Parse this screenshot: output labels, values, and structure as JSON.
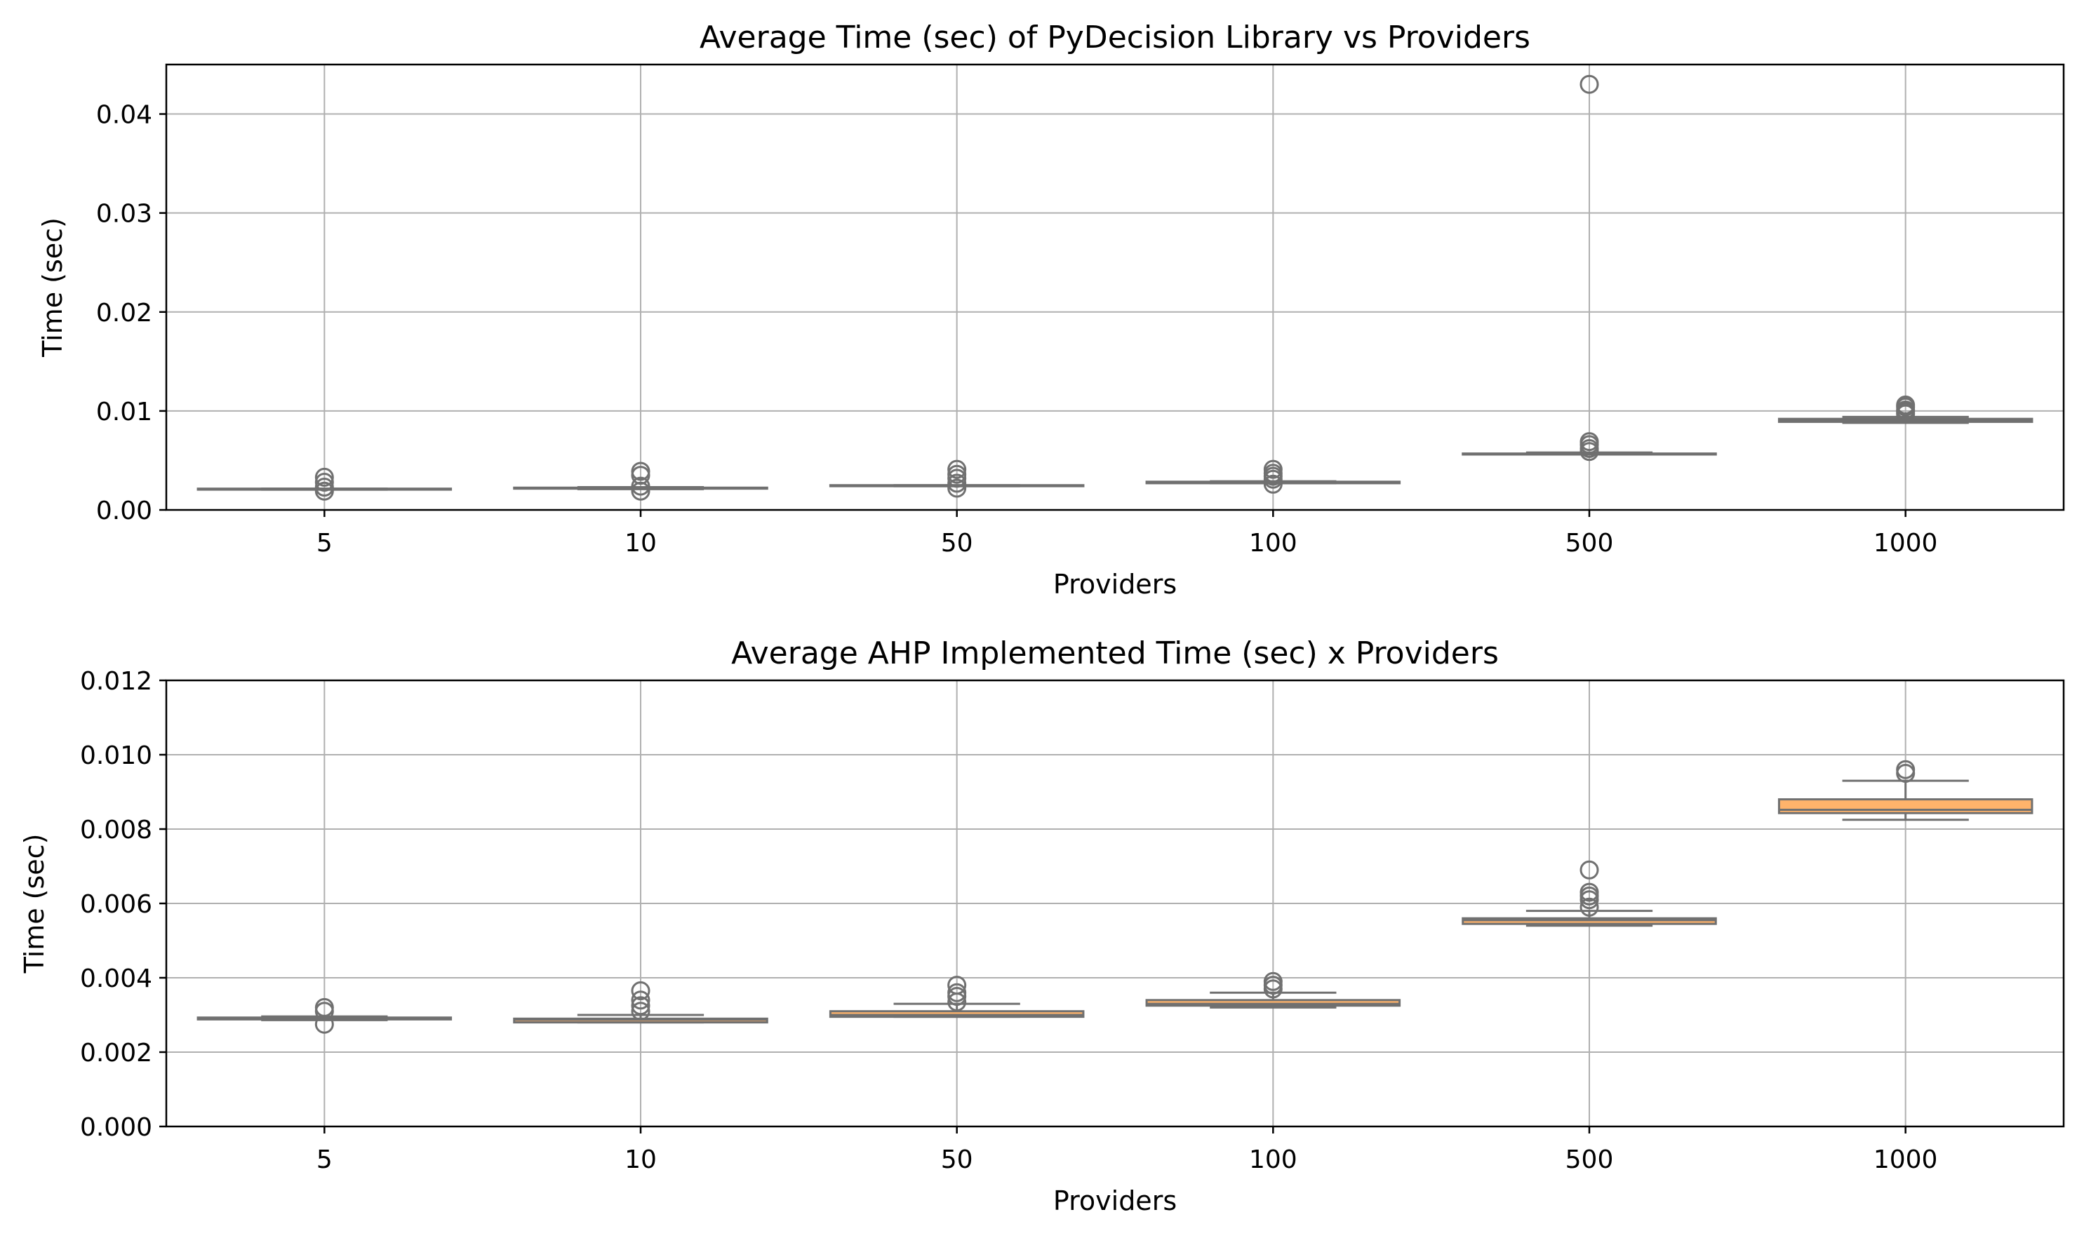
{
  "chart_data": [
    {
      "type": "box",
      "title": "Average Time (sec) of PyDecision Library vs Providers",
      "xlabel": "Providers",
      "ylabel": "Time (sec)",
      "categories": [
        "5",
        "10",
        "50",
        "100",
        "500",
        "1000"
      ],
      "ylim": [
        0,
        0.045
      ],
      "yticks": [
        0.0,
        0.01,
        0.02,
        0.03,
        0.04
      ],
      "ytick_labels": [
        "0.00",
        "0.01",
        "0.02",
        "0.03",
        "0.04"
      ],
      "grid": true,
      "box_color": "#ffb36b",
      "line_color": "#707070",
      "boxes": [
        {
          "category": "5",
          "whislo": 0.00205,
          "q1": 0.00205,
          "med": 0.0021,
          "q3": 0.00215,
          "whishi": 0.00215,
          "fliers": [
            0.0019,
            0.0023,
            0.0028,
            0.0033
          ]
        },
        {
          "category": "10",
          "whislo": 0.0021,
          "q1": 0.00215,
          "med": 0.0022,
          "q3": 0.00225,
          "whishi": 0.0023,
          "fliers": [
            0.0019,
            0.0024,
            0.0035,
            0.0039
          ]
        },
        {
          "category": "50",
          "whislo": 0.0024,
          "q1": 0.0024,
          "med": 0.00245,
          "q3": 0.0025,
          "whishi": 0.0025,
          "fliers": [
            0.0022,
            0.0027,
            0.0032,
            0.0036,
            0.0041
          ]
        },
        {
          "category": "100",
          "whislo": 0.0027,
          "q1": 0.0027,
          "med": 0.00278,
          "q3": 0.00285,
          "whishi": 0.0029,
          "fliers": [
            0.0026,
            0.0031,
            0.0034,
            0.0037,
            0.0041
          ]
        },
        {
          "category": "500",
          "whislo": 0.0056,
          "q1": 0.0056,
          "med": 0.00565,
          "q3": 0.0057,
          "whishi": 0.0058,
          "fliers": [
            0.0059,
            0.0062,
            0.0066,
            0.0069,
            0.043
          ]
        },
        {
          "category": "1000",
          "whislo": 0.0088,
          "q1": 0.0089,
          "med": 0.00905,
          "q3": 0.0092,
          "whishi": 0.0094,
          "fliers": [
            0.0097,
            0.0099,
            0.0101,
            0.0104,
            0.0106
          ]
        }
      ]
    },
    {
      "type": "box",
      "title": "Average AHP Implemented Time (sec) x Providers",
      "xlabel": "Providers",
      "ylabel": "Time (sec)",
      "categories": [
        "5",
        "10",
        "50",
        "100",
        "500",
        "1000"
      ],
      "ylim": [
        0,
        0.012
      ],
      "yticks": [
        0.0,
        0.002,
        0.004,
        0.006,
        0.008,
        0.01,
        0.012
      ],
      "ytick_labels": [
        "0.000",
        "0.002",
        "0.004",
        "0.006",
        "0.008",
        "0.010",
        "0.012"
      ],
      "grid": true,
      "box_color": "#ffb36b",
      "line_color": "#707070",
      "boxes": [
        {
          "category": "5",
          "whislo": 0.00286,
          "q1": 0.00288,
          "med": 0.0029,
          "q3": 0.00293,
          "whishi": 0.00296,
          "fliers": [
            0.00275,
            0.0031,
            0.0032
          ]
        },
        {
          "category": "10",
          "whislo": 0.0028,
          "q1": 0.0028,
          "med": 0.00287,
          "q3": 0.0029,
          "whishi": 0.003,
          "fliers": [
            0.0031,
            0.00325,
            0.0034,
            0.00365
          ]
        },
        {
          "category": "50",
          "whislo": 0.00295,
          "q1": 0.00295,
          "med": 0.003,
          "q3": 0.0031,
          "whishi": 0.0033,
          "fliers": [
            0.00335,
            0.0035,
            0.0036,
            0.0038
          ]
        },
        {
          "category": "100",
          "whislo": 0.0032,
          "q1": 0.00325,
          "med": 0.0033,
          "q3": 0.0034,
          "whishi": 0.0036,
          "fliers": [
            0.0037,
            0.0038,
            0.0039
          ]
        },
        {
          "category": "500",
          "whislo": 0.0054,
          "q1": 0.00545,
          "med": 0.00555,
          "q3": 0.0056,
          "whishi": 0.0058,
          "fliers": [
            0.0059,
            0.0061,
            0.0062,
            0.0063,
            0.0069
          ]
        },
        {
          "category": "1000",
          "whislo": 0.00825,
          "q1": 0.00843,
          "med": 0.00852,
          "q3": 0.0088,
          "whishi": 0.0093,
          "fliers": [
            0.0095,
            0.0096
          ]
        }
      ]
    }
  ]
}
